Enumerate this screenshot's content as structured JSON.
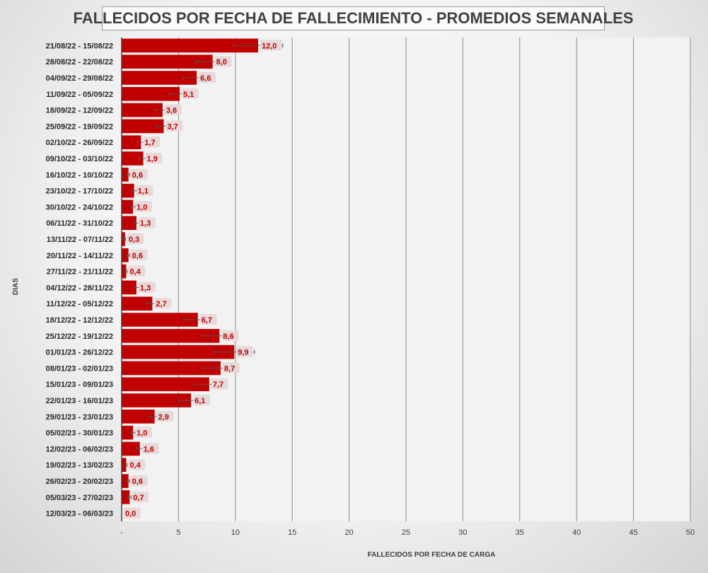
{
  "chart_data": {
    "type": "bar",
    "orientation": "horizontal",
    "title": "FALLECIDOS POR FECHA DE FALLECIMIENTO - PROMEDIOS SEMANALES",
    "xlabel": "FALLECIDOS POR FECHA DE CARGA",
    "ylabel": "DIAS",
    "xlim": [
      0,
      50
    ],
    "x_ticks": [
      "-",
      "5",
      "10",
      "15",
      "20",
      "25",
      "30",
      "35",
      "40",
      "45",
      "50"
    ],
    "grid": true,
    "error_bars": true,
    "bar_color": "#c00000",
    "label_color": "#c00000",
    "categories": [
      "21/08/22 - 15/08/22",
      "28/08/22 - 22/08/22",
      "04/09/22 - 29/08/22",
      "11/09/22 - 05/09/22",
      "18/09/22 - 12/09/22",
      "25/09/22 - 19/09/22",
      "02/10/22 - 26/09/22",
      "09/10/22 - 03/10/22",
      "16/10/22 - 10/10/22",
      "23/10/22 - 17/10/22",
      "30/10/22 - 24/10/22",
      "06/11/22 - 31/10/22",
      "13/11/22 - 07/11/22",
      "20/11/22 - 14/11/22",
      "27/11/22 - 21/11/22",
      "04/12/22 - 28/11/22",
      "11/12/22 - 05/12/22",
      "18/12/22 - 12/12/22",
      "25/12/22 - 19/12/22",
      "01/01/23 - 26/12/22",
      "08/01/23 - 02/01/23",
      "15/01/23 - 09/01/23",
      "22/01/23 - 16/01/23",
      "29/01/23 - 23/01/23",
      "05/02/23 - 30/01/23",
      "12/02/23 - 06/02/23",
      "19/02/23 - 13/02/23",
      "26/02/23 - 20/02/23",
      "05/03/23 - 27/02/23",
      "12/03/23 - 06/03/23"
    ],
    "values": [
      12.0,
      8.0,
      6.6,
      5.1,
      3.6,
      3.7,
      1.7,
      1.9,
      0.6,
      1.1,
      1.0,
      1.3,
      0.3,
      0.6,
      0.4,
      1.3,
      2.7,
      6.7,
      8.6,
      9.9,
      8.7,
      7.7,
      6.1,
      2.9,
      1.0,
      1.6,
      0.4,
      0.6,
      0.7,
      0.0
    ],
    "value_labels": [
      "12,0",
      "8,0",
      "6,6",
      "5,1",
      "3,6",
      "3,7",
      "1,7",
      "1,9",
      "0,6",
      "1,1",
      "1,0",
      "1,3",
      "0,3",
      "0,6",
      "0,4",
      "1,3",
      "2,7",
      "6,7",
      "8,6",
      "9,9",
      "8,7",
      "7,7",
      "6,1",
      "2,9",
      "1,0",
      "1,6",
      "0,4",
      "0,6",
      "0,7",
      "0,0"
    ]
  }
}
